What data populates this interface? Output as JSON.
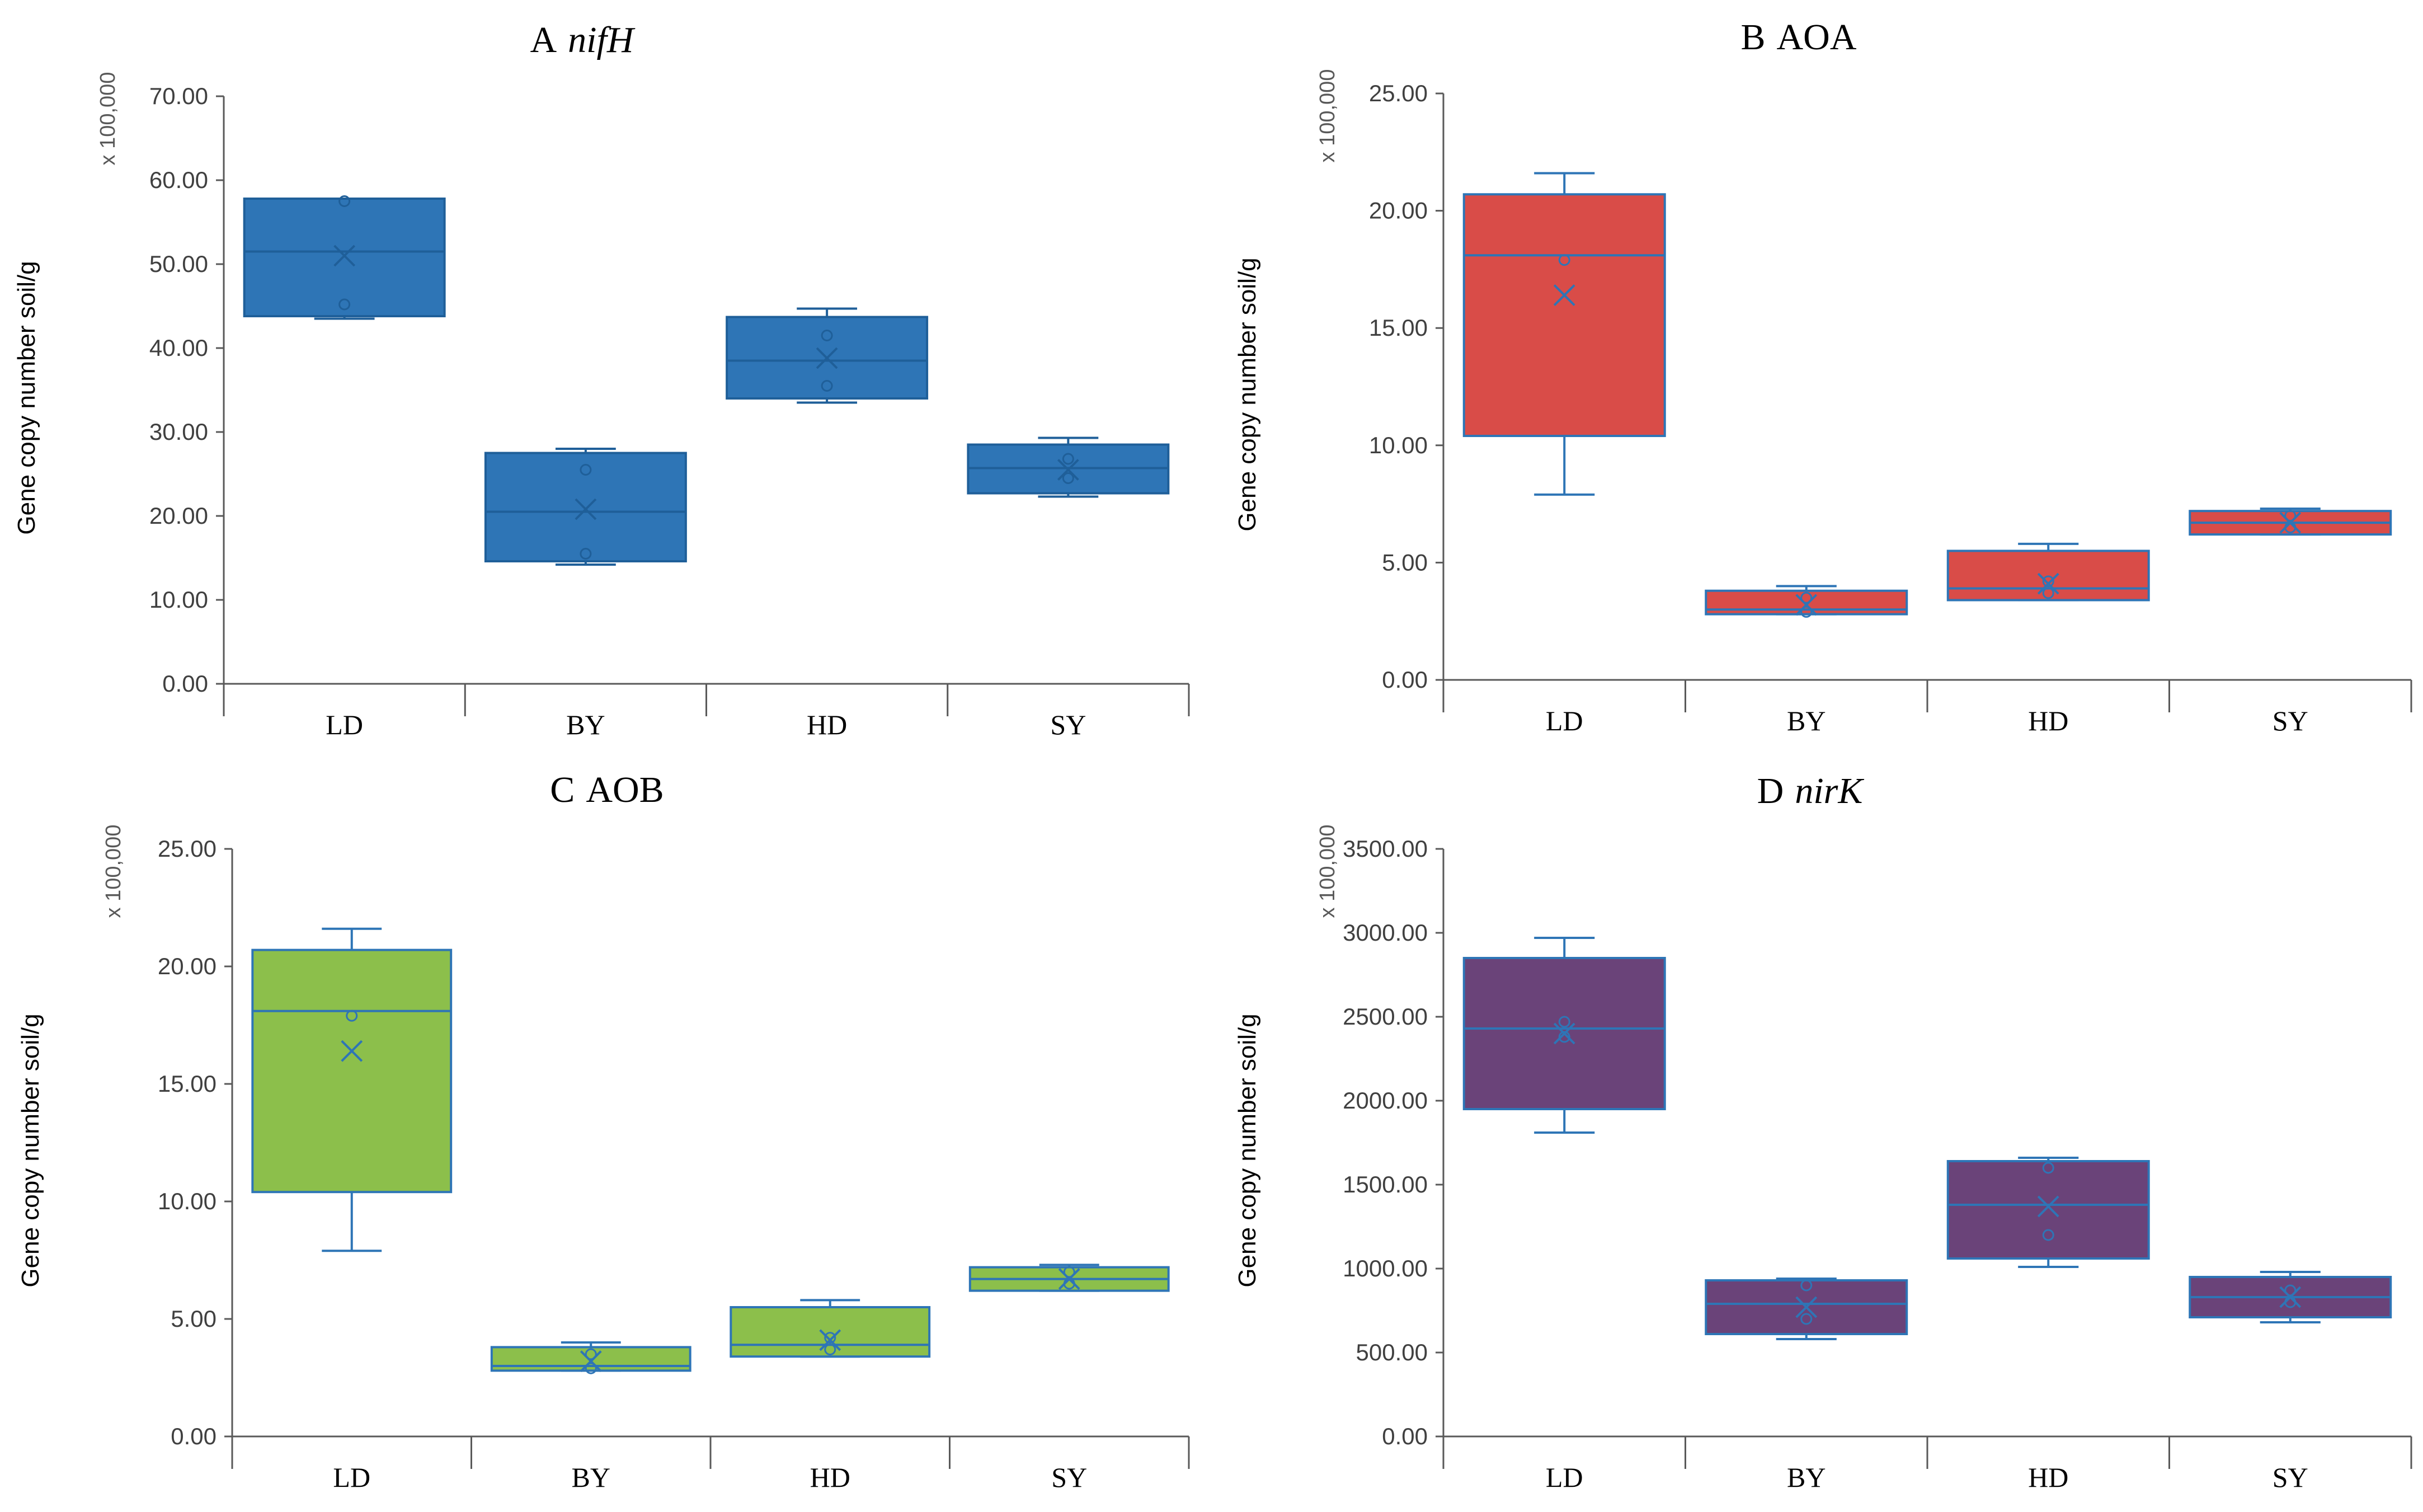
{
  "figure": {
    "scale_note": "x 100,000",
    "ylabel": "Gene copy number soil/g"
  },
  "chart_data": [
    {
      "type": "boxplot",
      "panel": "A",
      "title_letter": "A",
      "title_name": "nifH",
      "title_italic": true,
      "color": "#2E75B6",
      "stroke": "#1F5F99",
      "ylim": [
        0,
        70
      ],
      "yticks": [
        "0.00",
        "10.00",
        "20.00",
        "30.00",
        "40.00",
        "50.00",
        "60.00",
        "70.00"
      ],
      "ytick_values": [
        0,
        10,
        20,
        30,
        40,
        50,
        60,
        70
      ],
      "ylabel": "Gene copy number soil/g",
      "categories": [
        "LD",
        "BY",
        "HD",
        "SY"
      ],
      "boxes": [
        {
          "min": 43.5,
          "q1": 43.8,
          "median": 51.5,
          "q3": 57.8,
          "max": 57.8,
          "mean": 51.0,
          "points": [
            57.5,
            45.2
          ]
        },
        {
          "min": 14.2,
          "q1": 14.6,
          "median": 20.5,
          "q3": 27.5,
          "max": 28.0,
          "mean": 20.8,
          "points": [
            25.5,
            15.5
          ]
        },
        {
          "min": 33.5,
          "q1": 34.0,
          "median": 38.5,
          "q3": 43.7,
          "max": 44.7,
          "mean": 38.8,
          "points": [
            41.5,
            35.5
          ]
        },
        {
          "min": 22.3,
          "q1": 22.7,
          "median": 25.7,
          "q3": 28.5,
          "max": 29.3,
          "mean": 25.5,
          "points": [
            26.8,
            24.5
          ]
        }
      ]
    },
    {
      "type": "boxplot",
      "panel": "B",
      "title_letter": "B",
      "title_name": "AOA",
      "title_italic": false,
      "color": "#D94C48",
      "stroke": "#2E75B6",
      "ylim": [
        0,
        25
      ],
      "yticks": [
        "0.00",
        "5.00",
        "10.00",
        "15.00",
        "20.00",
        "25.00"
      ],
      "ytick_values": [
        0,
        5,
        10,
        15,
        20,
        25
      ],
      "ylabel": "Gene copy number soil/g",
      "categories": [
        "LD",
        "BY",
        "HD",
        "SY"
      ],
      "boxes": [
        {
          "min": 7.9,
          "q1": 10.4,
          "median": 18.1,
          "q3": 20.7,
          "max": 21.6,
          "mean": 16.4,
          "points": [
            17.9
          ]
        },
        {
          "min": 2.8,
          "q1": 2.8,
          "median": 3.0,
          "q3": 3.8,
          "max": 4.0,
          "mean": 3.2,
          "points": [
            3.5,
            2.9
          ]
        },
        {
          "min": 3.4,
          "q1": 3.4,
          "median": 3.9,
          "q3": 5.5,
          "max": 5.8,
          "mean": 4.1,
          "points": [
            4.2,
            3.7
          ]
        },
        {
          "min": 6.2,
          "q1": 6.2,
          "median": 6.7,
          "q3": 7.2,
          "max": 7.3,
          "mean": 6.7,
          "points": [
            7.0,
            6.5
          ]
        }
      ]
    },
    {
      "type": "boxplot",
      "panel": "C",
      "title_letter": "C",
      "title_name": "AOB",
      "title_italic": false,
      "color": "#8CBF4B",
      "stroke": "#2E75B6",
      "ylim": [
        0,
        25
      ],
      "yticks": [
        "0.00",
        "5.00",
        "10.00",
        "15.00",
        "20.00",
        "25.00"
      ],
      "ytick_values": [
        0,
        5,
        10,
        15,
        20,
        25
      ],
      "ylabel": "Gene copy number soil/g",
      "categories": [
        "LD",
        "BY",
        "HD",
        "SY"
      ],
      "boxes": [
        {
          "min": 7.9,
          "q1": 10.4,
          "median": 18.1,
          "q3": 20.7,
          "max": 21.6,
          "mean": 16.4,
          "points": [
            17.9
          ]
        },
        {
          "min": 2.8,
          "q1": 2.8,
          "median": 3.0,
          "q3": 3.8,
          "max": 4.0,
          "mean": 3.2,
          "points": [
            3.5,
            2.9
          ]
        },
        {
          "min": 3.4,
          "q1": 3.4,
          "median": 3.9,
          "q3": 5.5,
          "max": 5.8,
          "mean": 4.1,
          "points": [
            4.2,
            3.7
          ]
        },
        {
          "min": 6.2,
          "q1": 6.2,
          "median": 6.7,
          "q3": 7.2,
          "max": 7.3,
          "mean": 6.7,
          "points": [
            7.0,
            6.5
          ]
        }
      ]
    },
    {
      "type": "boxplot",
      "panel": "D",
      "title_letter": "D",
      "title_name": "nirK",
      "title_italic": true,
      "color": "#6A4379",
      "stroke": "#2E75B6",
      "ylim": [
        0,
        3500
      ],
      "yticks": [
        "0.00",
        "500.00",
        "1000.00",
        "1500.00",
        "2000.00",
        "2500.00",
        "3000.00",
        "3500.00"
      ],
      "ytick_values": [
        0,
        500,
        1000,
        1500,
        2000,
        2500,
        3000,
        3500
      ],
      "ylabel": "Gene copy number soil/g",
      "categories": [
        "LD",
        "BY",
        "HD",
        "SY"
      ],
      "boxes": [
        {
          "min": 1810,
          "q1": 1950,
          "median": 2430,
          "q3": 2850,
          "max": 2970,
          "mean": 2400,
          "points": [
            2470,
            2380
          ]
        },
        {
          "min": 580,
          "q1": 610,
          "median": 790,
          "q3": 930,
          "max": 940,
          "mean": 770,
          "points": [
            900,
            700
          ]
        },
        {
          "min": 1010,
          "q1": 1060,
          "median": 1380,
          "q3": 1640,
          "max": 1660,
          "mean": 1370,
          "points": [
            1600,
            1200
          ]
        },
        {
          "min": 680,
          "q1": 710,
          "median": 830,
          "q3": 950,
          "max": 980,
          "mean": 830,
          "points": [
            870,
            800
          ]
        }
      ]
    }
  ]
}
